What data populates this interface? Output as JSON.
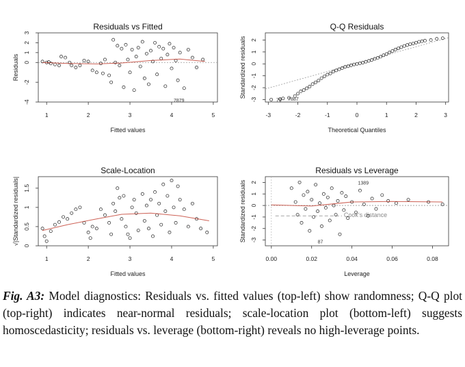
{
  "chart_data": [
    {
      "type": "scatter",
      "title": "Residuals vs Fitted",
      "xlabel": "Fitted values",
      "ylabel": "Residuals",
      "xlim": [
        0.8,
        5.1
      ],
      "ylim": [
        -4,
        3
      ],
      "xticks": [
        1,
        2,
        3,
        4,
        5
      ],
      "yticks": [
        -4,
        -2,
        0,
        1,
        2,
        3
      ],
      "reference_line": 0,
      "smooth": [
        [
          0.9,
          0.0
        ],
        [
          1.5,
          -0.1
        ],
        [
          2.2,
          -0.15
        ],
        [
          2.8,
          -0.05
        ],
        [
          3.5,
          0.2
        ],
        [
          4.2,
          0.35
        ],
        [
          4.8,
          0.1
        ]
      ],
      "labeled_points": [
        {
          "label": "7879",
          "x": 4.0,
          "y": -3.8
        }
      ],
      "points": [
        [
          0.9,
          0.1
        ],
        [
          1.0,
          0.0
        ],
        [
          1.05,
          0.05
        ],
        [
          1.1,
          -0.1
        ],
        [
          1.2,
          -0.2
        ],
        [
          1.3,
          -0.3
        ],
        [
          1.35,
          0.6
        ],
        [
          1.45,
          0.5
        ],
        [
          1.55,
          0.0
        ],
        [
          1.6,
          -0.3
        ],
        [
          1.7,
          -0.5
        ],
        [
          1.8,
          -0.3
        ],
        [
          1.9,
          0.2
        ],
        [
          2.0,
          0.1
        ],
        [
          2.1,
          -0.8
        ],
        [
          2.2,
          -1.0
        ],
        [
          2.3,
          -0.1
        ],
        [
          2.35,
          -1.1
        ],
        [
          2.4,
          0.3
        ],
        [
          2.5,
          -1.3
        ],
        [
          2.55,
          -2.0
        ],
        [
          2.6,
          2.3
        ],
        [
          2.65,
          0.0
        ],
        [
          2.7,
          1.7
        ],
        [
          2.75,
          -0.3
        ],
        [
          2.8,
          1.4
        ],
        [
          2.85,
          -2.5
        ],
        [
          2.9,
          1.8
        ],
        [
          2.95,
          0.3
        ],
        [
          3.0,
          -1.0
        ],
        [
          3.05,
          1.3
        ],
        [
          3.1,
          -2.8
        ],
        [
          3.15,
          0.6
        ],
        [
          3.2,
          1.5
        ],
        [
          3.25,
          -0.4
        ],
        [
          3.3,
          2.1
        ],
        [
          3.35,
          -1.6
        ],
        [
          3.4,
          0.9
        ],
        [
          3.45,
          -2.2
        ],
        [
          3.5,
          1.2
        ],
        [
          3.55,
          0.1
        ],
        [
          3.6,
          2.0
        ],
        [
          3.65,
          -1.2
        ],
        [
          3.7,
          1.6
        ],
        [
          3.75,
          0.4
        ],
        [
          3.8,
          1.4
        ],
        [
          3.85,
          -2.4
        ],
        [
          3.9,
          0.8
        ],
        [
          3.95,
          1.9
        ],
        [
          4.0,
          -0.6
        ],
        [
          4.05,
          1.5
        ],
        [
          4.1,
          0.2
        ],
        [
          4.15,
          -1.8
        ],
        [
          4.2,
          1.0
        ],
        [
          4.3,
          -2.6
        ],
        [
          4.4,
          1.3
        ],
        [
          4.5,
          0.5
        ],
        [
          4.6,
          -0.5
        ],
        [
          4.75,
          0.3
        ]
      ]
    },
    {
      "type": "scatter",
      "title": "Q-Q Residuals",
      "xlabel": "Theoretical Quantiles",
      "ylabel": "Standardized residuals",
      "xlim": [
        -3.1,
        3.1
      ],
      "ylim": [
        -3.2,
        2.6
      ],
      "xticks": [
        -3,
        -2,
        -1,
        0,
        1,
        2,
        3
      ],
      "yticks": [
        -3,
        -2,
        -1,
        0,
        1,
        2
      ],
      "reference_line": [
        [
          -3.1,
          -2.1
        ],
        [
          3.1,
          2.2
        ]
      ],
      "labeled_points": [
        {
          "label": "7887",
          "x": -2.4,
          "y": -2.9
        },
        {
          "label": "79",
          "x": -2.8,
          "y": -3.0
        }
      ],
      "points": [
        [
          -2.9,
          -3.0
        ],
        [
          -2.6,
          -2.95
        ],
        [
          -2.5,
          -2.9
        ],
        [
          -2.3,
          -2.85
        ],
        [
          -2.1,
          -2.7
        ],
        [
          -2.0,
          -2.5
        ],
        [
          -1.9,
          -2.3
        ],
        [
          -1.8,
          -2.2
        ],
        [
          -1.7,
          -2.05
        ],
        [
          -1.6,
          -1.9
        ],
        [
          -1.5,
          -1.7
        ],
        [
          -1.4,
          -1.55
        ],
        [
          -1.3,
          -1.4
        ],
        [
          -1.2,
          -1.2
        ],
        [
          -1.1,
          -1.05
        ],
        [
          -1.0,
          -0.9
        ],
        [
          -0.9,
          -0.8
        ],
        [
          -0.8,
          -0.65
        ],
        [
          -0.7,
          -0.55
        ],
        [
          -0.6,
          -0.45
        ],
        [
          -0.5,
          -0.35
        ],
        [
          -0.4,
          -0.25
        ],
        [
          -0.3,
          -0.2
        ],
        [
          -0.2,
          -0.12
        ],
        [
          -0.1,
          -0.05
        ],
        [
          0.0,
          0.0
        ],
        [
          0.1,
          0.05
        ],
        [
          0.2,
          0.1
        ],
        [
          0.3,
          0.18
        ],
        [
          0.4,
          0.25
        ],
        [
          0.5,
          0.33
        ],
        [
          0.6,
          0.42
        ],
        [
          0.7,
          0.5
        ],
        [
          0.8,
          0.6
        ],
        [
          0.9,
          0.72
        ],
        [
          1.0,
          0.82
        ],
        [
          1.1,
          0.95
        ],
        [
          1.2,
          1.08
        ],
        [
          1.3,
          1.2
        ],
        [
          1.4,
          1.3
        ],
        [
          1.5,
          1.4
        ],
        [
          1.6,
          1.5
        ],
        [
          1.7,
          1.58
        ],
        [
          1.8,
          1.65
        ],
        [
          1.9,
          1.7
        ],
        [
          2.0,
          1.78
        ],
        [
          2.1,
          1.85
        ],
        [
          2.2,
          1.9
        ],
        [
          2.3,
          1.95
        ],
        [
          2.5,
          2.0
        ],
        [
          2.7,
          2.1
        ],
        [
          2.9,
          2.15
        ]
      ]
    },
    {
      "type": "scatter",
      "title": "Scale-Location",
      "xlabel": "Fitted values",
      "ylabel": "√|Standardized residuals|",
      "xlim": [
        0.8,
        5.1
      ],
      "ylim": [
        0,
        1.8
      ],
      "xticks": [
        1,
        2,
        3,
        4,
        5
      ],
      "yticks": [
        0,
        0.5,
        1.0,
        1.5
      ],
      "smooth": [
        [
          0.9,
          0.4
        ],
        [
          1.5,
          0.55
        ],
        [
          2.2,
          0.7
        ],
        [
          2.8,
          0.82
        ],
        [
          3.5,
          0.85
        ],
        [
          4.2,
          0.78
        ],
        [
          4.9,
          0.65
        ]
      ],
      "points": [
        [
          0.9,
          0.45
        ],
        [
          0.95,
          0.25
        ],
        [
          1.0,
          0.12
        ],
        [
          1.1,
          0.38
        ],
        [
          1.2,
          0.55
        ],
        [
          1.3,
          0.62
        ],
        [
          1.4,
          0.75
        ],
        [
          1.5,
          0.7
        ],
        [
          1.6,
          0.85
        ],
        [
          1.7,
          0.95
        ],
        [
          1.8,
          1.0
        ],
        [
          1.9,
          0.6
        ],
        [
          2.0,
          0.35
        ],
        [
          2.05,
          0.2
        ],
        [
          2.1,
          0.5
        ],
        [
          2.2,
          0.45
        ],
        [
          2.3,
          0.95
        ],
        [
          2.4,
          0.8
        ],
        [
          2.5,
          0.6
        ],
        [
          2.55,
          0.3
        ],
        [
          2.6,
          1.1
        ],
        [
          2.65,
          0.9
        ],
        [
          2.7,
          1.5
        ],
        [
          2.75,
          1.25
        ],
        [
          2.8,
          0.7
        ],
        [
          2.85,
          1.3
        ],
        [
          2.9,
          0.5
        ],
        [
          2.95,
          0.3
        ],
        [
          3.0,
          0.2
        ],
        [
          3.05,
          1.0
        ],
        [
          3.1,
          1.2
        ],
        [
          3.15,
          0.85
        ],
        [
          3.2,
          0.4
        ],
        [
          3.3,
          1.35
        ],
        [
          3.35,
          0.65
        ],
        [
          3.4,
          1.05
        ],
        [
          3.45,
          0.45
        ],
        [
          3.5,
          1.2
        ],
        [
          3.55,
          0.25
        ],
        [
          3.6,
          1.4
        ],
        [
          3.65,
          0.8
        ],
        [
          3.7,
          1.1
        ],
        [
          3.75,
          0.55
        ],
        [
          3.8,
          1.6
        ],
        [
          3.85,
          0.9
        ],
        [
          3.9,
          1.3
        ],
        [
          3.95,
          0.35
        ],
        [
          4.0,
          1.7
        ],
        [
          4.05,
          1.0
        ],
        [
          4.1,
          0.6
        ],
        [
          4.15,
          1.55
        ],
        [
          4.2,
          1.2
        ],
        [
          4.3,
          0.95
        ],
        [
          4.4,
          0.5
        ],
        [
          4.5,
          1.1
        ],
        [
          4.6,
          0.7
        ],
        [
          4.7,
          0.45
        ],
        [
          4.85,
          0.35
        ]
      ]
    },
    {
      "type": "scatter",
      "title": "Residuals vs Leverage",
      "xlabel": "Leverage",
      "ylabel": "Standardized residuals",
      "xlim": [
        -0.003,
        0.088
      ],
      "ylim": [
        -3.5,
        2.5
      ],
      "xticks": [
        0.0,
        0.02,
        0.04,
        0.06,
        0.08
      ],
      "xtick_labels": [
        "0.00",
        "0.02",
        "0.04",
        "0.06",
        "0.08"
      ],
      "yticks": [
        -3,
        -2,
        -1,
        0,
        1,
        2
      ],
      "reference_line": 0,
      "cooks_distance_label": "Cook's distance",
      "smooth": [
        [
          0.0,
          0.05
        ],
        [
          0.02,
          -0.05
        ],
        [
          0.04,
          0.3
        ],
        [
          0.06,
          0.35
        ],
        [
          0.085,
          0.3
        ]
      ],
      "labeled_points": [
        {
          "label": "1389",
          "x": 0.042,
          "y": 2.0
        },
        {
          "label": "87",
          "x": 0.022,
          "y": -3.1
        }
      ],
      "points": [
        [
          0.01,
          1.5
        ],
        [
          0.012,
          0.3
        ],
        [
          0.013,
          -0.8
        ],
        [
          0.014,
          2.0
        ],
        [
          0.015,
          -1.5
        ],
        [
          0.016,
          0.9
        ],
        [
          0.017,
          -0.3
        ],
        [
          0.018,
          1.2
        ],
        [
          0.019,
          -2.2
        ],
        [
          0.02,
          0.5
        ],
        [
          0.021,
          -1.0
        ],
        [
          0.022,
          1.8
        ],
        [
          0.023,
          -0.5
        ],
        [
          0.024,
          0.2
        ],
        [
          0.025,
          -1.8
        ],
        [
          0.026,
          1.0
        ],
        [
          0.027,
          -0.2
        ],
        [
          0.028,
          0.7
        ],
        [
          0.029,
          -1.3
        ],
        [
          0.03,
          1.5
        ],
        [
          0.031,
          0.0
        ],
        [
          0.032,
          -0.8
        ],
        [
          0.033,
          0.4
        ],
        [
          0.034,
          -2.5
        ],
        [
          0.035,
          1.1
        ],
        [
          0.036,
          -0.4
        ],
        [
          0.037,
          0.8
        ],
        [
          0.038,
          -1.1
        ],
        [
          0.04,
          0.3
        ],
        [
          0.042,
          -0.6
        ],
        [
          0.044,
          1.3
        ],
        [
          0.046,
          0.1
        ],
        [
          0.048,
          -0.9
        ],
        [
          0.05,
          0.6
        ],
        [
          0.052,
          -0.3
        ],
        [
          0.055,
          0.9
        ],
        [
          0.058,
          0.4
        ],
        [
          0.062,
          0.2
        ],
        [
          0.068,
          0.5
        ],
        [
          0.078,
          0.3
        ],
        [
          0.085,
          0.1
        ]
      ]
    }
  ],
  "caption": {
    "label": "Fig. A3:",
    "text": "Model diagnostics: Residuals vs. fitted values (top-left) show randomness; Q-Q plot (top-right) indicates near-normal residuals; scale-location plot (bottom-left) suggests homoscedasticity; residuals vs. leverage (bottom-right) reveals no high-leverage points."
  }
}
